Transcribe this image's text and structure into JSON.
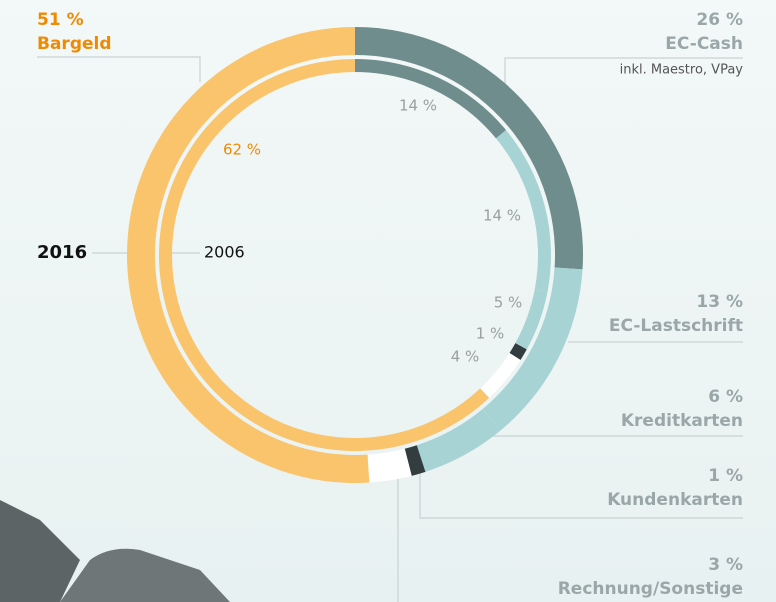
{
  "chart_data": {
    "type": "donut",
    "categories": [
      "EC-Cash",
      "EC-Lastschrift",
      "Kreditkarten",
      "Kundenkarten",
      "Rechnung/Sonstige",
      "Bargeld"
    ],
    "colors": [
      "#6e8d8c",
      "#a8d3d4",
      "#a8d3d4",
      "#333d40",
      "#ffffff",
      "#f9c46b"
    ],
    "annotation": "inkl. Maestro, VPay",
    "series": [
      {
        "name": "2016",
        "values": [
          26,
          13,
          6,
          1,
          3,
          51
        ],
        "value_labels": [
          "26 %",
          "13 %",
          "6 %",
          "1 %",
          "3 %",
          "51 %"
        ]
      },
      {
        "name": "2006",
        "values": [
          14,
          14,
          5,
          1,
          4,
          62
        ],
        "value_labels": [
          "14 %",
          "14 %",
          "5 %",
          "1 %",
          "4 %",
          "62 %"
        ]
      }
    ]
  }
}
